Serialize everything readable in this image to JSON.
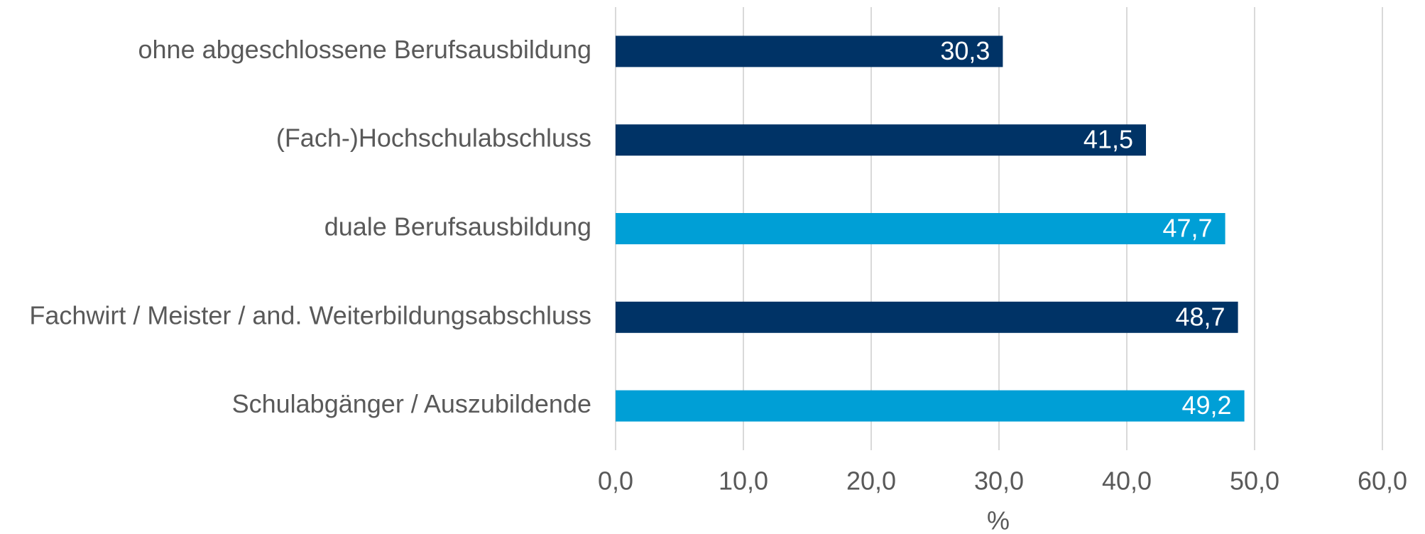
{
  "chart_data": {
    "type": "hbar",
    "categories": [
      "ohne abgeschlossene Berufsausbildung",
      "(Fach-)Hochschulabschluss",
      "duale Berufsausbildung",
      "Fachwirt / Meister / and. Weiterbildungsabschluss",
      "Schulabgänger / Auszubildende"
    ],
    "values": [
      30.3,
      41.5,
      47.7,
      48.7,
      49.2
    ],
    "value_labels": [
      "30,3",
      "41,5",
      "47,7",
      "48,7",
      "49,2"
    ],
    "colors": [
      "#003366",
      "#003366",
      "#009fd6",
      "#003366",
      "#009fd6"
    ],
    "xlabel": "%",
    "xlim": [
      0,
      60
    ],
    "xticks": [
      {
        "value": 0,
        "label": "0,0"
      },
      {
        "value": 10,
        "label": "10,0"
      },
      {
        "value": 20,
        "label": "20,0"
      },
      {
        "value": 30,
        "label": "30,0"
      },
      {
        "value": 40,
        "label": "40,0"
      },
      {
        "value": 50,
        "label": "50,0"
      },
      {
        "value": 60,
        "label": "60,0"
      }
    ],
    "grid": true
  }
}
